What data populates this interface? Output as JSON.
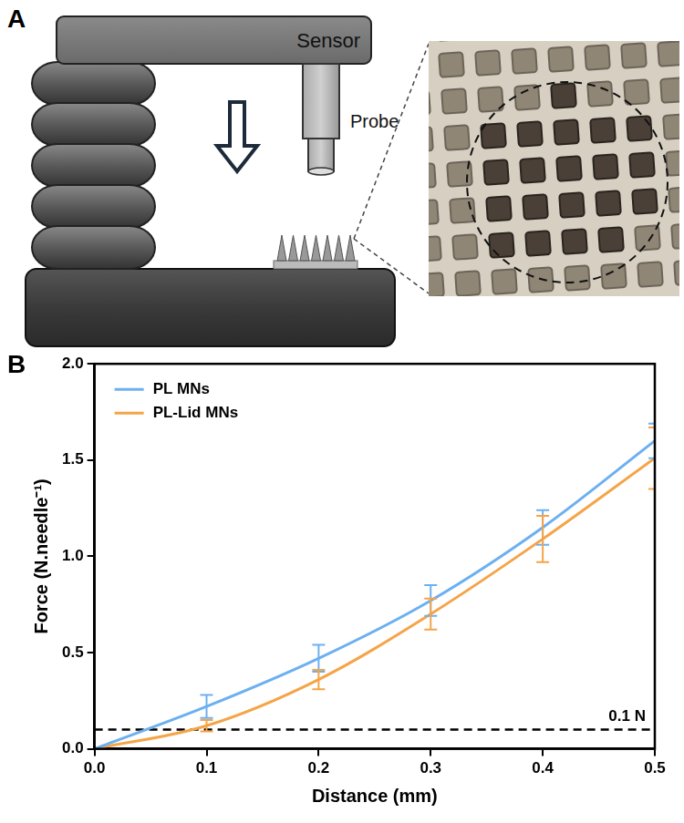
{
  "diagram": {
    "letter": "A",
    "sensor_label": "Sensor",
    "probe_label": "Probe"
  },
  "chart_data": {
    "letter": "B",
    "type": "line",
    "x_label": "Distance (mm)",
    "y_label": "Force (N.needle⁻¹)",
    "x": [
      0,
      0.1,
      0.2,
      0.3,
      0.4,
      0.5
    ],
    "series": [
      {
        "name": "PL MNs",
        "color": "#6cb0f0",
        "values": [
          0,
          0.22,
          0.47,
          0.77,
          1.15,
          1.6
        ],
        "errors": [
          null,
          0.06,
          0.07,
          0.08,
          0.09,
          0.09
        ]
      },
      {
        "name": "PL-Lid MNs",
        "color": "#f5a447",
        "values": [
          0,
          0.12,
          0.36,
          0.7,
          1.09,
          1.51
        ],
        "errors": [
          null,
          0.03,
          0.05,
          0.08,
          0.12,
          0.16
        ]
      }
    ],
    "xlim": [
      0,
      0.5
    ],
    "xticks": [
      {
        "value": 0,
        "label": "0.0"
      },
      0.1,
      0.2,
      0.3,
      0.4,
      0.5
    ],
    "ylim": [
      0,
      2
    ],
    "yticks": [
      {
        "value": 0,
        "label": "0.0"
      },
      0.5,
      {
        "value": 1,
        "label": "1.0"
      },
      1.5,
      {
        "value": 2,
        "label": "2.0"
      }
    ],
    "grid": false,
    "legend": "upper left",
    "reference_line": {
      "value": 0.1,
      "label": "0.1 N",
      "line_style": "dashed"
    }
  }
}
